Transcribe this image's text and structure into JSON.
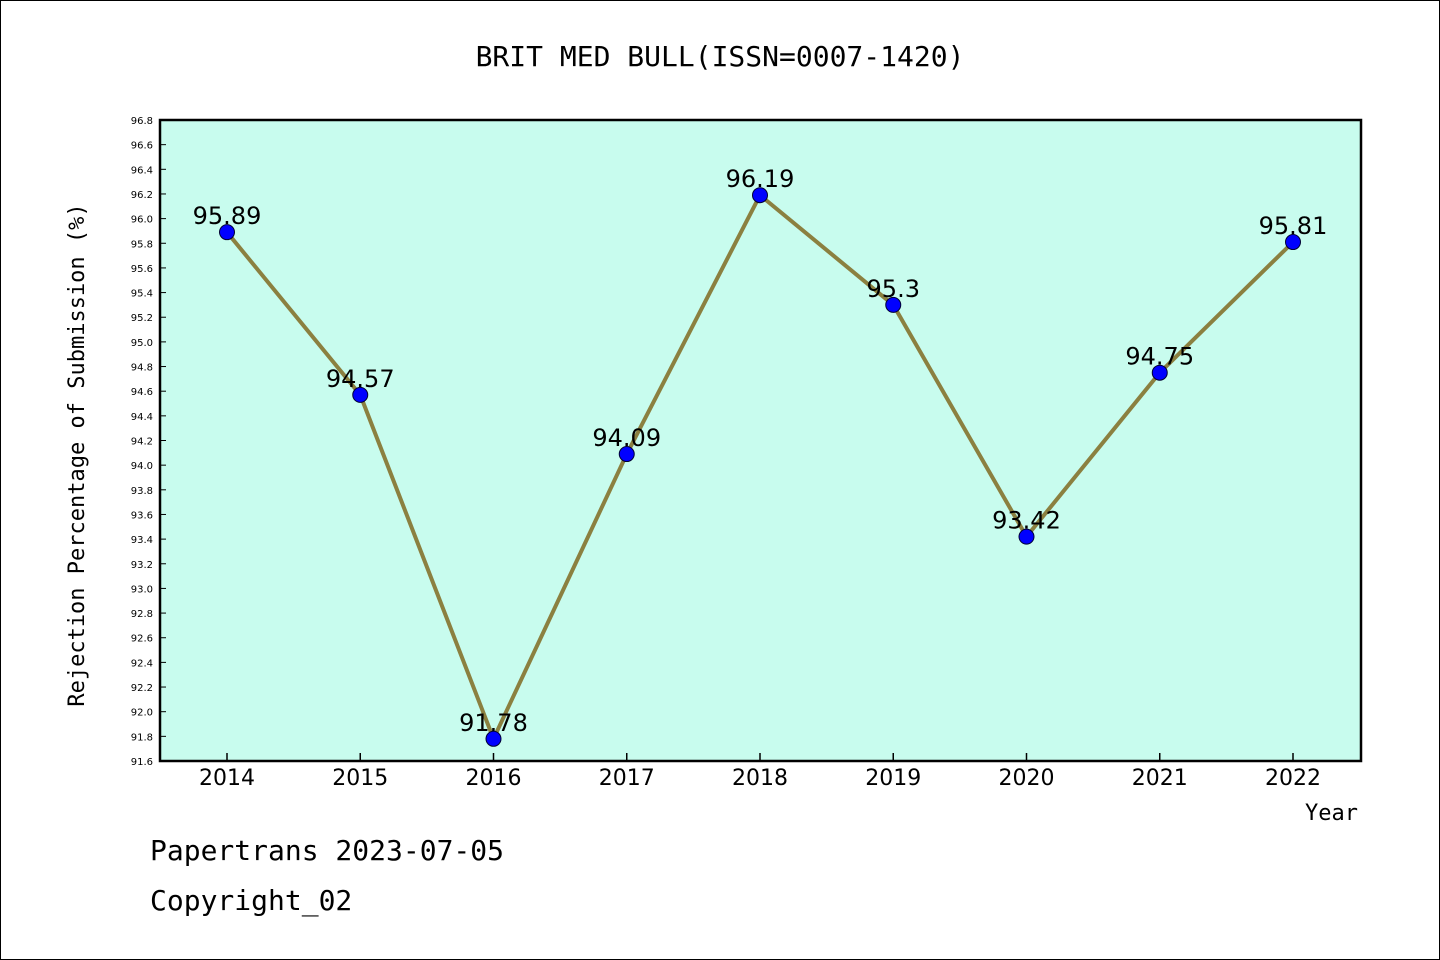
{
  "chart_data": {
    "type": "line",
    "title": "BRIT MED BULL(ISSN=0007-1420)",
    "xlabel": "Year",
    "ylabel": "Rejection Percentage of Submission (%)",
    "categories": [
      "2014",
      "2015",
      "2016",
      "2017",
      "2018",
      "2019",
      "2020",
      "2021",
      "2022"
    ],
    "series": [
      {
        "values": [
          95.89,
          94.57,
          91.78,
          94.09,
          96.19,
          95.3,
          93.42,
          94.75,
          95.81
        ]
      }
    ],
    "data_labels": [
      "95.89",
      "94.57",
      "91.78",
      "94.09",
      "96.19",
      "95.3",
      "93.42",
      "94.75",
      "95.81"
    ],
    "ylim": [
      91.6,
      96.8
    ],
    "yticks": [
      "91.6",
      "91.8",
      "92.0",
      "92.2",
      "92.4",
      "92.6",
      "92.8",
      "93.0",
      "93.2",
      "93.4",
      "93.6",
      "93.8",
      "94.0",
      "94.2",
      "94.4",
      "94.6",
      "94.8",
      "95.0",
      "95.2",
      "95.4",
      "95.6",
      "95.8",
      "96.0",
      "96.2",
      "96.4",
      "96.6",
      "96.8"
    ],
    "grid": false,
    "legend": "none",
    "colors": {
      "plot_background": "#c8fcee",
      "line": "#8b8040",
      "marker": "#0000ff",
      "axes": "#000000"
    }
  },
  "footer": {
    "line1": "Papertrans 2023-07-05",
    "line2": "Copyright_02"
  }
}
